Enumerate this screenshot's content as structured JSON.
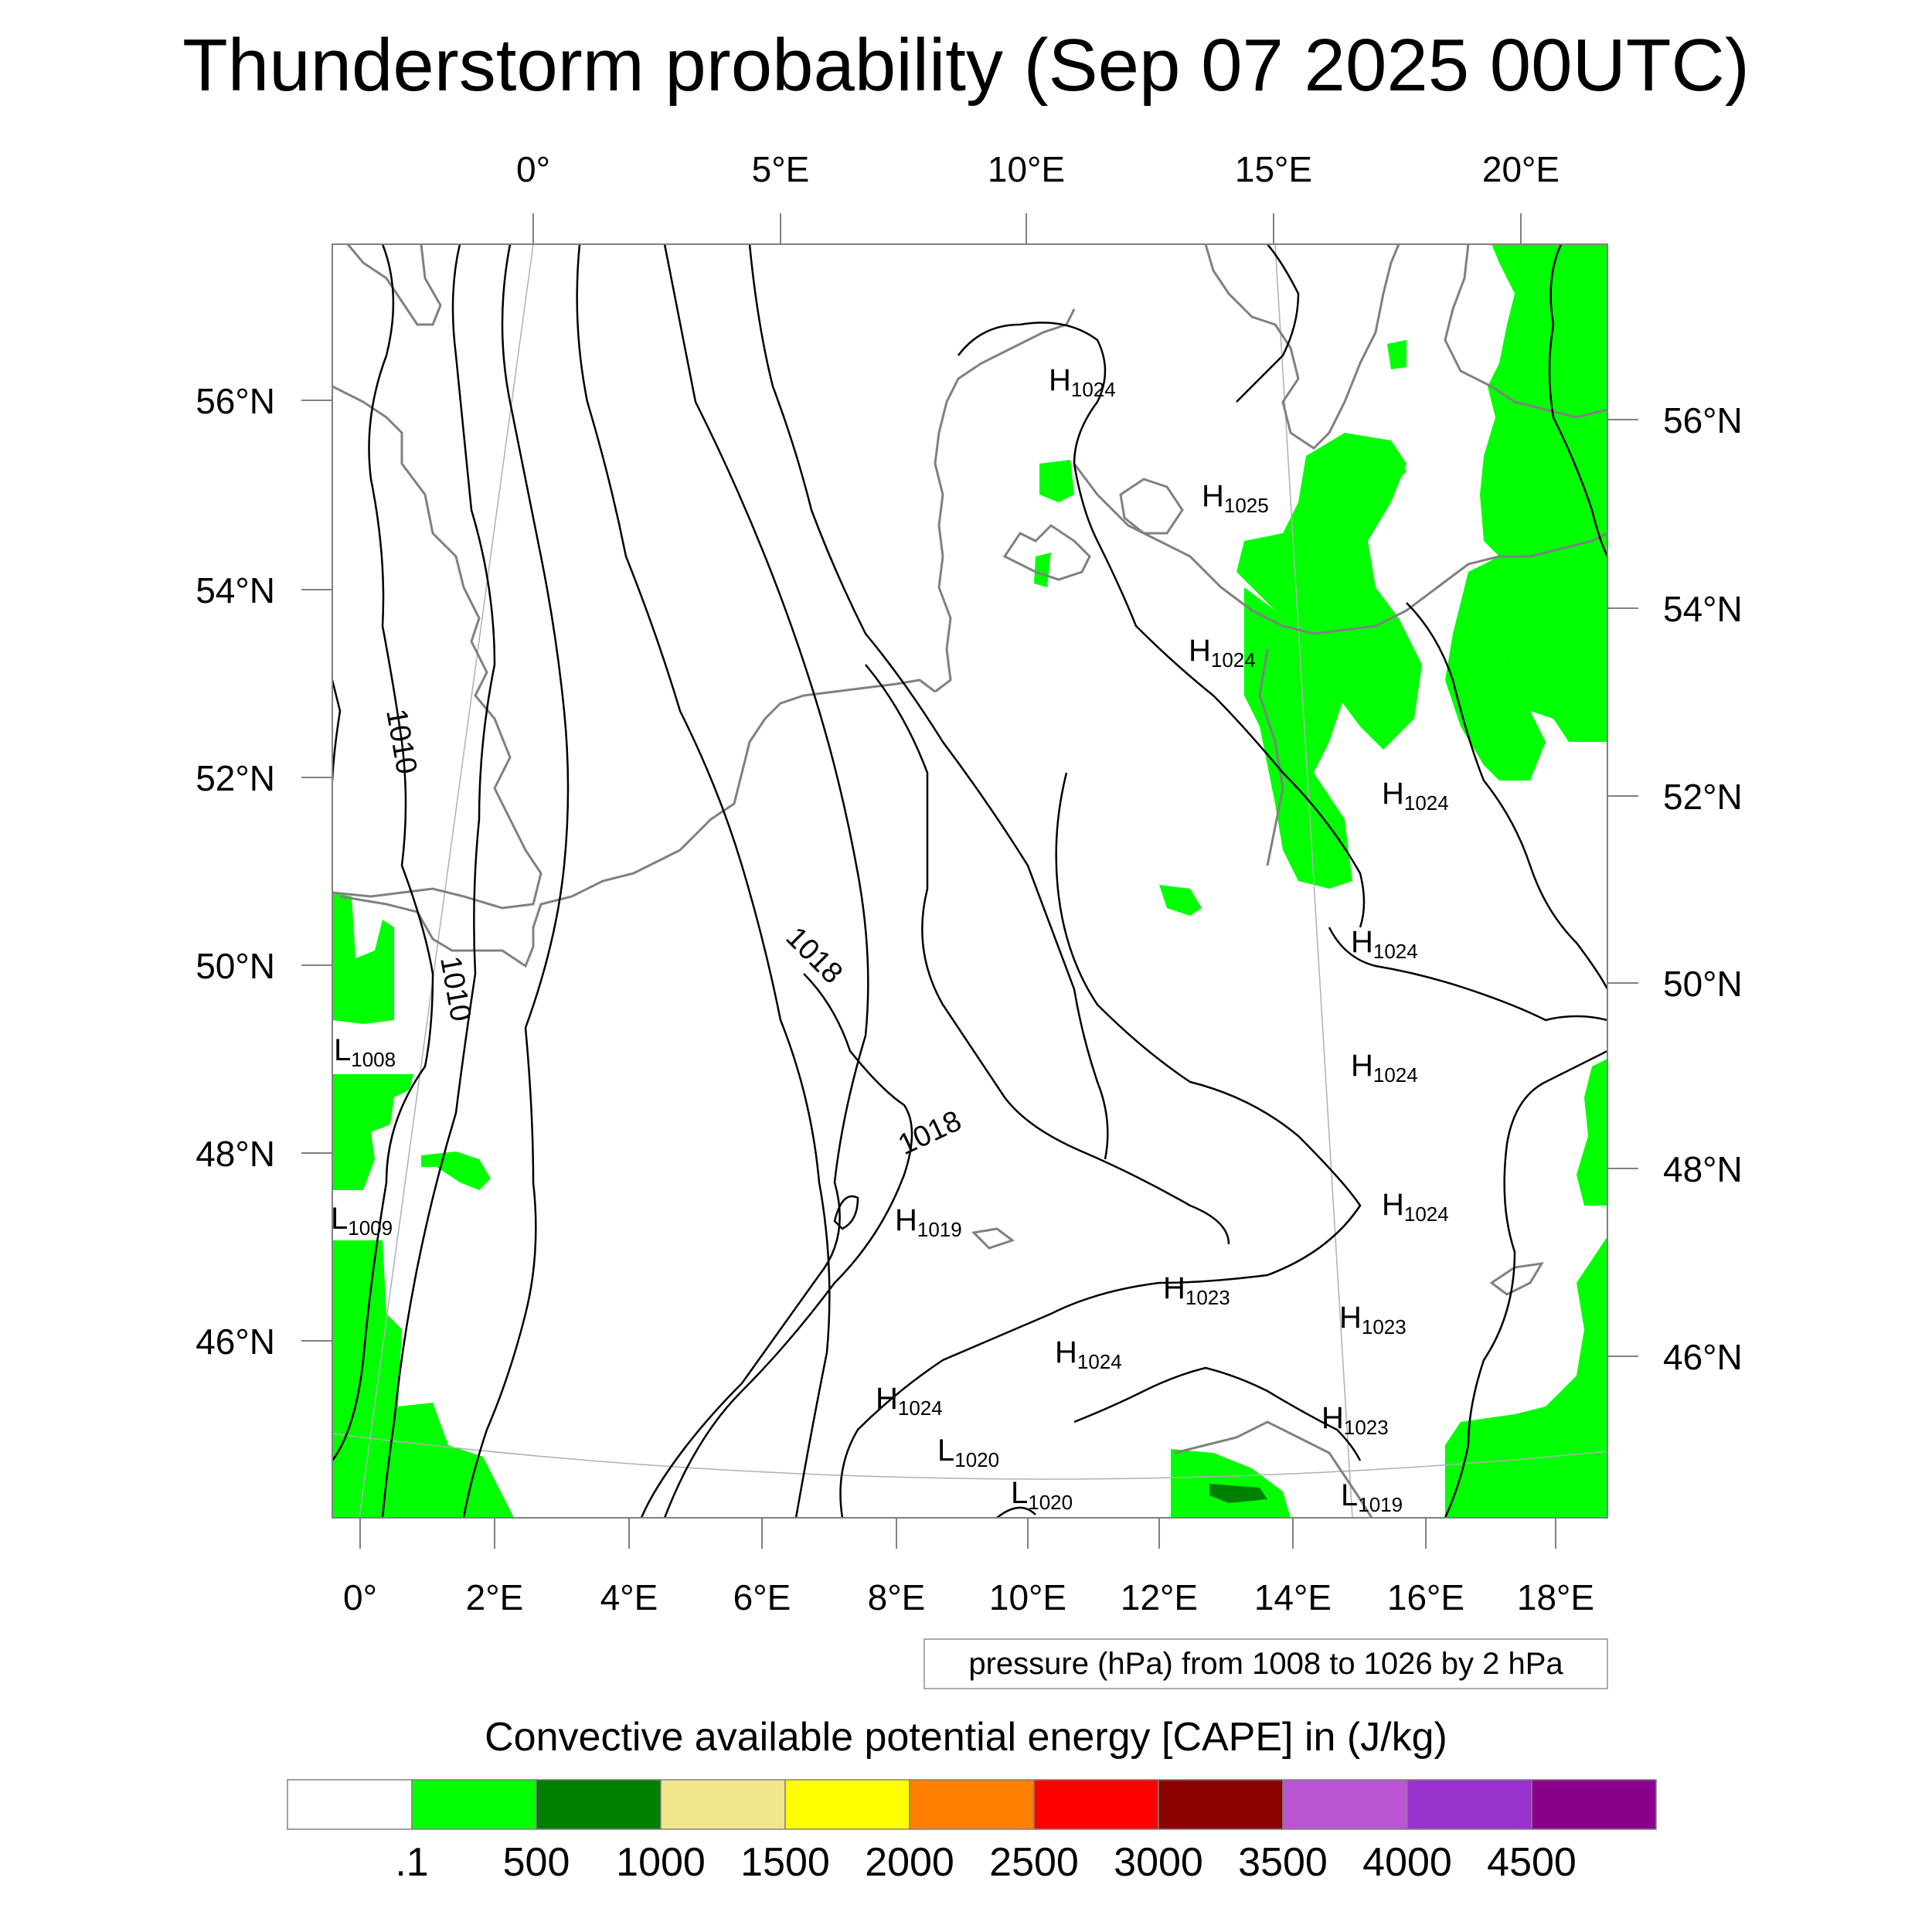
{
  "title": "Thunderstorm probability (Sep 07 2025 00UTC)",
  "axes": {
    "top_lon_labels": [
      "0°",
      "5°E",
      "10°E",
      "15°E",
      "20°E"
    ],
    "bottom_lon_labels": [
      "0°",
      "2°E",
      "4°E",
      "6°E",
      "8°E",
      "10°E",
      "12°E",
      "14°E",
      "16°E",
      "18°E"
    ],
    "left_lat_labels": [
      "56°N",
      "54°N",
      "52°N",
      "50°N",
      "48°N",
      "46°N"
    ],
    "right_lat_labels": [
      "56°N",
      "54°N",
      "52°N",
      "50°N",
      "48°N",
      "46°N"
    ]
  },
  "contour_info": "pressure (hPa) from 1008 to 1026 by 2 hPa",
  "contour_labels": [
    "1010",
    "1010",
    "1018",
    "1018"
  ],
  "pressure_centers": [
    {
      "type": "H",
      "value": "1024"
    },
    {
      "type": "H",
      "value": "1025"
    },
    {
      "type": "H",
      "value": "1024"
    },
    {
      "type": "H",
      "value": "1024"
    },
    {
      "type": "H",
      "value": "1024"
    },
    {
      "type": "H",
      "value": "1024"
    },
    {
      "type": "H",
      "value": "1024"
    },
    {
      "type": "H",
      "value": "1019"
    },
    {
      "type": "H",
      "value": "1023"
    },
    {
      "type": "H",
      "value": "1023"
    },
    {
      "type": "H",
      "value": "1024"
    },
    {
      "type": "H",
      "value": "1024"
    },
    {
      "type": "H",
      "value": "1023"
    },
    {
      "type": "L",
      "value": "1020"
    },
    {
      "type": "L",
      "value": "1020"
    },
    {
      "type": "L",
      "value": "1019"
    },
    {
      "type": "L",
      "value": "1008"
    },
    {
      "type": "L",
      "value": "1009"
    }
  ],
  "colorbar": {
    "title": "Convective available potential energy [CAPE] in (J/kg)",
    "colors": [
      "#ffffff",
      "#00ff00",
      "#008000",
      "#f0e68c",
      "#ffff00",
      "#ff8000",
      "#ff0000",
      "#8b0000",
      "#ba55d3",
      "#9932cc",
      "#8b008b"
    ],
    "labels": [
      ".1",
      "500",
      "1000",
      "1500",
      "2000",
      "2500",
      "3000",
      "3500",
      "4000",
      "4500"
    ]
  },
  "colors": {
    "cape_fill": "#00ff00",
    "cape_dark": "#008000",
    "coastline": "#808080",
    "isobar": "#000000"
  }
}
